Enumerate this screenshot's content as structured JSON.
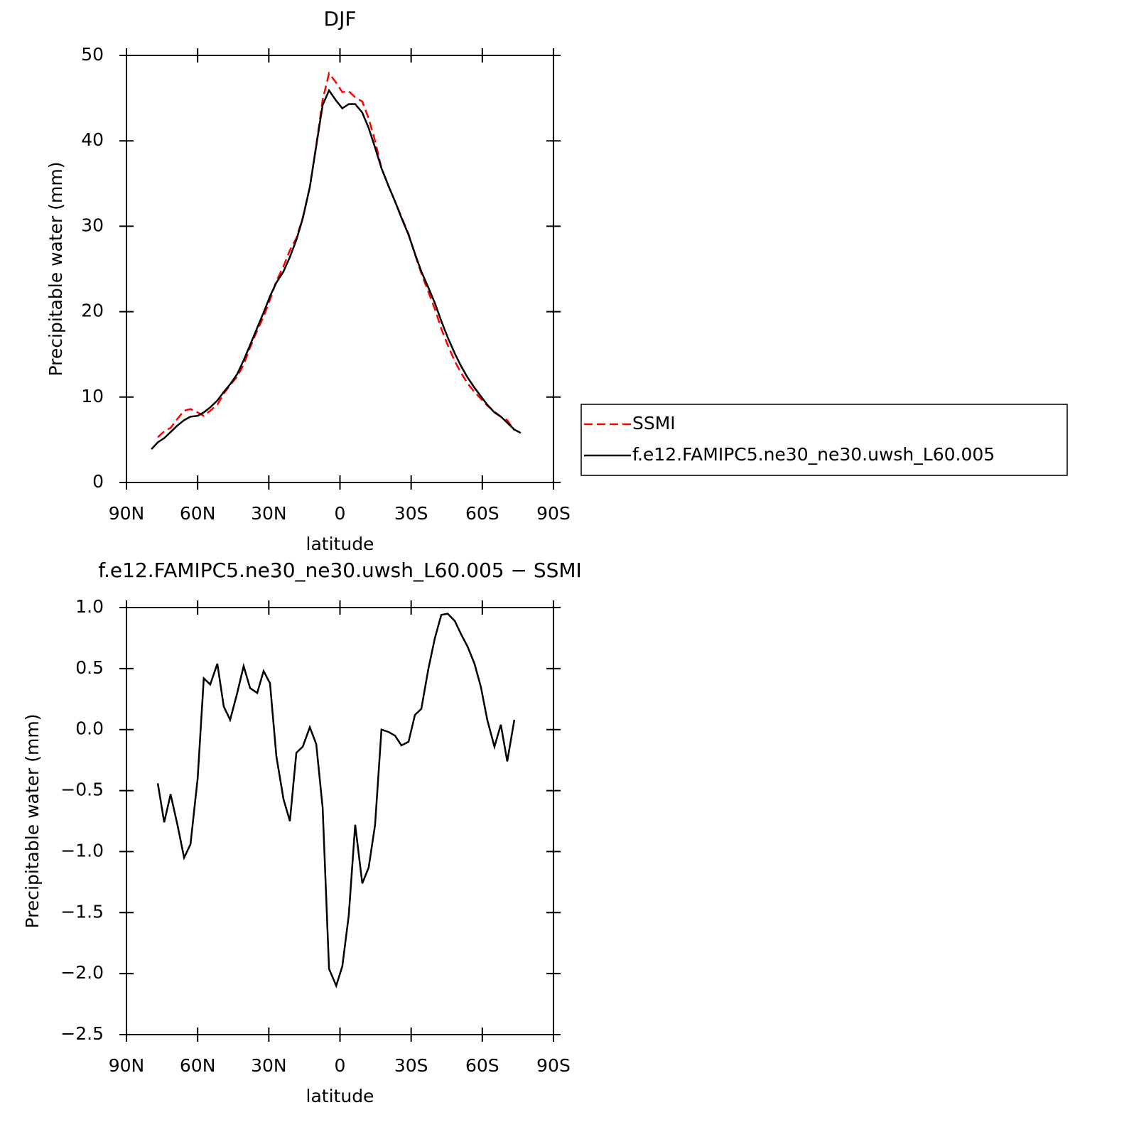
{
  "chart_data": [
    {
      "type": "line",
      "title": "DJF",
      "y_label": "Precipitable water (mm)",
      "x_label": "latitude",
      "x": [
        79.5,
        76.8,
        74.1,
        71.4,
        68.4,
        65.7,
        63.0,
        60.0,
        57.4,
        54.7,
        51.7,
        49.0,
        46.3,
        43.3,
        40.6,
        37.9,
        34.9,
        32.2,
        29.5,
        26.8,
        23.8,
        21.1,
        18.4,
        15.7,
        12.7,
        10.0,
        7.3,
        4.6,
        1.6,
        -1.0,
        -3.7,
        -6.4,
        -9.4,
        -12.1,
        -14.8,
        -17.5,
        -20.5,
        -23.2,
        -25.9,
        -28.9,
        -31.6,
        -34.3,
        -37.3,
        -40.0,
        -42.7,
        -45.4,
        -48.4,
        -51.1,
        -53.8,
        -56.7,
        -59.4,
        -62.1,
        -65.1,
        -67.8,
        -70.5,
        -73.5,
        -76.2
      ],
      "series": [
        {
          "name": "SSMI",
          "color": "#ff0000",
          "linestyle": "dashed",
          "values": [
            null,
            5.3,
            6.0,
            6.4,
            7.5,
            8.4,
            8.6,
            8.2,
            7.8,
            8.4,
            9.1,
            10.4,
            11.4,
            12.4,
            13.8,
            15.8,
            17.8,
            19.4,
            21.4,
            23.6,
            25.3,
            27.2,
            28.6,
            31.0,
            34.6,
            39.5,
            44.8,
            47.9,
            46.8,
            45.7,
            45.8,
            45.1,
            44.6,
            42.6,
            40.0,
            36.8,
            34.7,
            32.9,
            31.1,
            29.1,
            26.7,
            24.5,
            22.3,
            20.3,
            18.0,
            16.1,
            14.2,
            12.8,
            11.6,
            10.6,
            9.8,
            9.0,
            8.3,
            7.7,
            7.3,
            6.1,
            null
          ]
        },
        {
          "name": "f.e12.FAMIPC5.ne30_ne30.uwsh_L60.005",
          "color": "#000000",
          "linestyle": "solid",
          "values": [
            3.9,
            4.7,
            5.2,
            5.9,
            6.7,
            7.3,
            7.7,
            7.8,
            8.2,
            8.8,
            9.6,
            10.6,
            11.5,
            12.7,
            14.3,
            16.1,
            18.1,
            19.9,
            21.8,
            23.4,
            24.7,
            26.4,
            28.4,
            30.9,
            34.6,
            39.4,
            44.2,
            45.9,
            44.7,
            43.8,
            44.3,
            44.3,
            43.3,
            41.5,
            39.2,
            36.8,
            34.7,
            32.9,
            31.0,
            29.0,
            26.8,
            24.7,
            22.8,
            21.0,
            18.9,
            17.0,
            15.1,
            13.6,
            12.3,
            11.1,
            10.1,
            9.1,
            8.2,
            7.7,
            7.0,
            6.2,
            5.8
          ]
        }
      ],
      "xlim": [
        90,
        -90
      ],
      "xticks": [
        {
          "value": 90,
          "label": "90N"
        },
        {
          "value": 60,
          "label": "60N"
        },
        {
          "value": 30,
          "label": "30N"
        },
        0,
        {
          "value": -30,
          "label": "30S"
        },
        {
          "value": -60,
          "label": "60S"
        },
        {
          "value": -90,
          "label": "90S"
        }
      ],
      "ylim": [
        0,
        50
      ],
      "yticks": [
        0,
        10,
        20,
        30,
        40,
        50
      ],
      "legend": "right"
    },
    {
      "type": "line",
      "title": "f.e12.FAMIPC5.ne30_ne30.uwsh_L60.005 − SSMI",
      "y_label": "Precipitable water (mm)",
      "x_label": "latitude",
      "x": [
        76.8,
        74.1,
        71.4,
        68.4,
        65.7,
        63.0,
        60.0,
        57.4,
        54.7,
        51.7,
        49.0,
        46.3,
        43.3,
        40.6,
        37.9,
        34.9,
        32.2,
        29.5,
        26.8,
        23.8,
        21.1,
        18.4,
        15.7,
        12.7,
        10.0,
        7.3,
        4.6,
        1.6,
        -1.0,
        -3.7,
        -6.4,
        -9.4,
        -12.1,
        -14.8,
        -17.5,
        -20.5,
        -23.2,
        -25.9,
        -28.9,
        -31.6,
        -34.3,
        -37.3,
        -40.0,
        -42.7,
        -45.4,
        -48.4,
        -51.1,
        -53.8,
        -56.7,
        -59.4,
        -62.1,
        -65.1,
        -67.8,
        -70.5,
        -73.5
      ],
      "series": [
        {
          "name": "f.e12.FAMIPC5.ne30_ne30.uwsh_L60.005 − SSMI",
          "color": "#000000",
          "linestyle": "solid",
          "values": [
            -0.44,
            -0.76,
            -0.53,
            -0.79,
            -1.05,
            -0.94,
            -0.4,
            0.42,
            0.37,
            0.54,
            0.19,
            0.08,
            0.3,
            0.52,
            0.34,
            0.3,
            0.48,
            0.38,
            -0.22,
            -0.57,
            -0.75,
            -0.19,
            -0.14,
            0.02,
            -0.12,
            -0.64,
            -1.96,
            -2.1,
            -1.94,
            -1.52,
            -0.78,
            -1.26,
            -1.13,
            -0.78,
            0.0,
            -0.02,
            -0.05,
            -0.13,
            -0.1,
            0.12,
            0.17,
            0.5,
            0.75,
            0.94,
            0.95,
            0.89,
            0.78,
            0.68,
            0.54,
            0.35,
            0.08,
            -0.14,
            0.04,
            -0.26,
            0.08
          ]
        }
      ],
      "xlim": [
        90,
        -90
      ],
      "xticks": [
        {
          "value": 90,
          "label": "90N"
        },
        {
          "value": 60,
          "label": "60N"
        },
        {
          "value": 30,
          "label": "30N"
        },
        0,
        {
          "value": -30,
          "label": "30S"
        },
        {
          "value": -60,
          "label": "60S"
        },
        {
          "value": -90,
          "label": "90S"
        }
      ],
      "ylim": [
        -2.5,
        1.0
      ],
      "yticks": [
        {
          "value": -2.5,
          "label": "−2.5"
        },
        {
          "value": -2.0,
          "label": "−2.0"
        },
        {
          "value": -1.5,
          "label": "−1.5"
        },
        {
          "value": -1.0,
          "label": "−1.0"
        },
        {
          "value": -0.5,
          "label": "−0.5"
        },
        {
          "value": 0,
          "label": "0.0"
        },
        {
          "value": 0.5,
          "label": "0.5"
        },
        {
          "value": 1.0,
          "label": "1.0"
        }
      ]
    }
  ]
}
